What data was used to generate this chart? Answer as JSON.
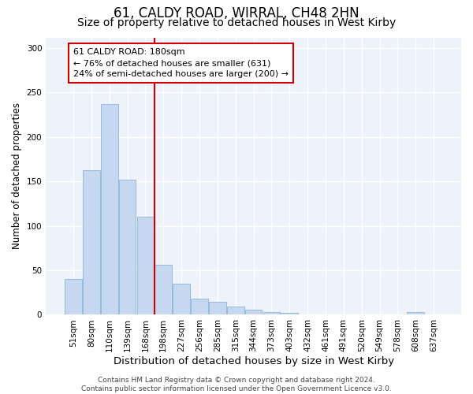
{
  "title1": "61, CALDY ROAD, WIRRAL, CH48 2HN",
  "title2": "Size of property relative to detached houses in West Kirby",
  "xlabel": "Distribution of detached houses by size in West Kirby",
  "ylabel": "Number of detached properties",
  "categories": [
    "51sqm",
    "80sqm",
    "110sqm",
    "139sqm",
    "168sqm",
    "198sqm",
    "227sqm",
    "256sqm",
    "285sqm",
    "315sqm",
    "344sqm",
    "373sqm",
    "403sqm",
    "432sqm",
    "461sqm",
    "491sqm",
    "520sqm",
    "549sqm",
    "578sqm",
    "608sqm",
    "637sqm"
  ],
  "values": [
    40,
    163,
    237,
    152,
    110,
    56,
    35,
    18,
    15,
    9,
    6,
    3,
    2,
    0,
    0,
    0,
    0,
    0,
    0,
    3,
    0
  ],
  "bar_color": "#c5d8f0",
  "bar_edge_color": "#8ab4d8",
  "bar_linewidth": 0.6,
  "vline_x": 4.5,
  "vline_color": "#cc0000",
  "annotation_text": "61 CALDY ROAD: 180sqm\n← 76% of detached houses are smaller (631)\n24% of semi-detached houses are larger (200) →",
  "annotation_box_color": "#ffffff",
  "annotation_box_edge": "#cc0000",
  "footer_text": "Contains HM Land Registry data © Crown copyright and database right 2024.\nContains public sector information licensed under the Open Government Licence v3.0.",
  "ylim": [
    0,
    312
  ],
  "yticks": [
    0,
    50,
    100,
    150,
    200,
    250,
    300
  ],
  "plot_bg_color": "#eef2fb",
  "fig_bg_color": "#ffffff",
  "grid_color": "#ffffff",
  "title1_fontsize": 12,
  "title2_fontsize": 10,
  "xlabel_fontsize": 9.5,
  "ylabel_fontsize": 8.5,
  "tick_fontsize": 7.5,
  "ann_fontsize": 8,
  "footer_fontsize": 6.5
}
